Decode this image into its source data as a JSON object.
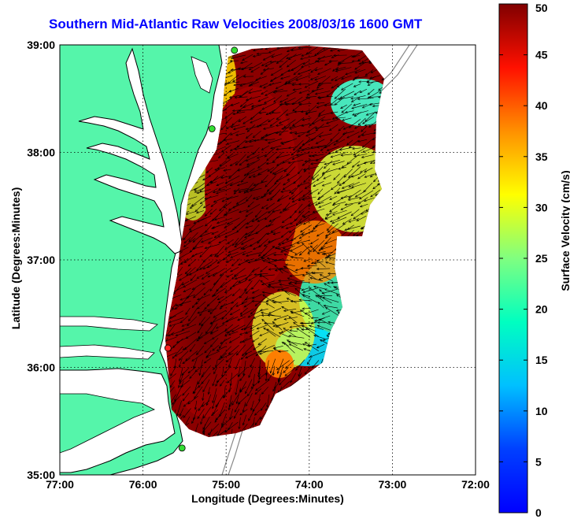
{
  "title": "Southern Mid-Atlantic Raw Velocities 2008/03/16 1600 GMT",
  "xlabel": "Longitude (Degrees:Minutes)",
  "ylabel": "Latitude (Degrees:Minutes)",
  "colorbar": {
    "label": "Surface Velocity (cm/s)",
    "ticks": [
      "0",
      "5",
      "10",
      "15",
      "20",
      "25",
      "30",
      "35",
      "40",
      "45",
      "50"
    ],
    "range": [
      0,
      50
    ],
    "colormap": "jet"
  },
  "map": {
    "x_ticks": [
      "77:00",
      "76:00",
      "75:00",
      "74:00",
      "73:00",
      "72:00"
    ],
    "y_ticks": [
      "39:00",
      "38:00",
      "37:00",
      "36:00",
      "35:00"
    ],
    "lon_range": [
      -77,
      -72
    ],
    "lat_range": [
      35,
      39
    ],
    "land_color": "#55f5aa",
    "water_color": "#ffffff",
    "grid": true,
    "stations": [
      {
        "lon": -74.9,
        "lat": 38.95,
        "color": "#33dd33"
      },
      {
        "lon": -75.17,
        "lat": 38.22,
        "color": "#33dd33"
      },
      {
        "lon": -75.7,
        "lat": 36.18,
        "color": "#ff2222"
      },
      {
        "lon": -75.53,
        "lat": 35.25,
        "color": "#33dd33"
      }
    ]
  }
}
